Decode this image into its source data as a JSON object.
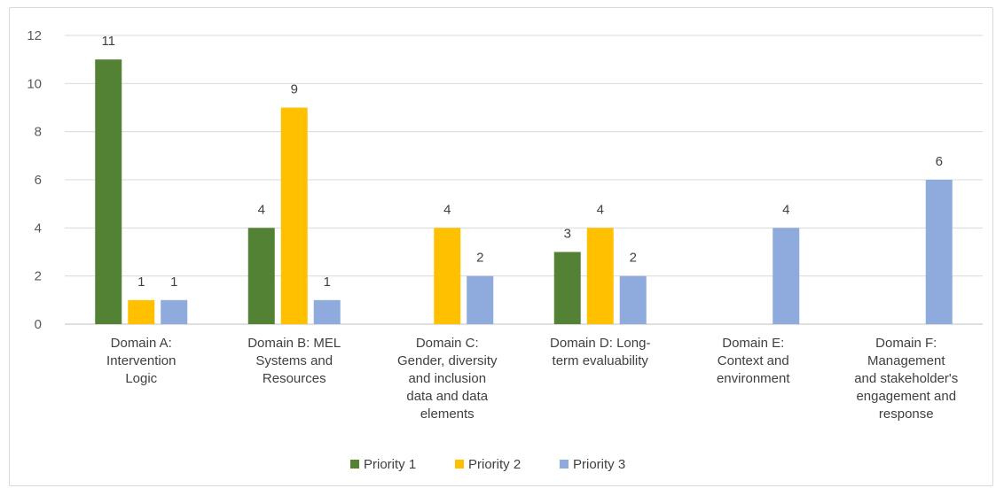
{
  "chart_data": {
    "type": "bar",
    "categories": [
      [
        "Domain A:",
        "Intervention",
        "Logic"
      ],
      [
        "Domain B: MEL",
        "Systems and",
        "Resources"
      ],
      [
        "Domain C:",
        "Gender, diversity",
        "and inclusion",
        "data and data",
        "elements"
      ],
      [
        "Domain D: Long-",
        "term evaluability"
      ],
      [
        "Domain E:",
        "Context and",
        "environment"
      ],
      [
        "Domain F:",
        "Management",
        "and stakeholder's",
        "engagement and",
        "response"
      ]
    ],
    "series": [
      {
        "name": "Priority 1",
        "color": "#548235",
        "values": [
          11,
          4,
          null,
          3,
          null,
          null
        ]
      },
      {
        "name": "Priority 2",
        "color": "#FFC000",
        "values": [
          1,
          9,
          4,
          4,
          null,
          null
        ]
      },
      {
        "name": "Priority 3",
        "color": "#8FAADC",
        "values": [
          1,
          1,
          2,
          2,
          4,
          6
        ]
      }
    ],
    "ylim": [
      0,
      12
    ],
    "yticks": [
      0,
      2,
      4,
      6,
      8,
      10,
      12
    ],
    "grid": true,
    "legend": "bottom-center"
  }
}
